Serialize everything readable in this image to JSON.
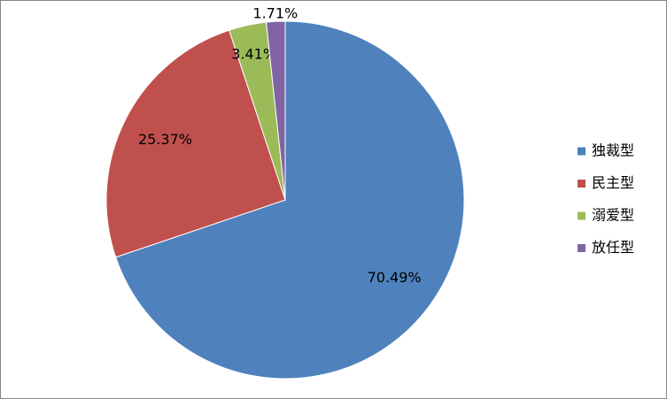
{
  "chart_data": {
    "type": "pie",
    "categories": [
      "独裁型",
      "民主型",
      "溺爱型",
      "放任型"
    ],
    "values": [
      70.49,
      25.37,
      3.41,
      1.71
    ],
    "value_labels": [
      "70.49%",
      "25.37%",
      "3.41%",
      "1.71%"
    ],
    "colors": [
      "#4f81bd",
      "#c0504d",
      "#9bbb59",
      "#8064a2"
    ],
    "legend": "right"
  }
}
